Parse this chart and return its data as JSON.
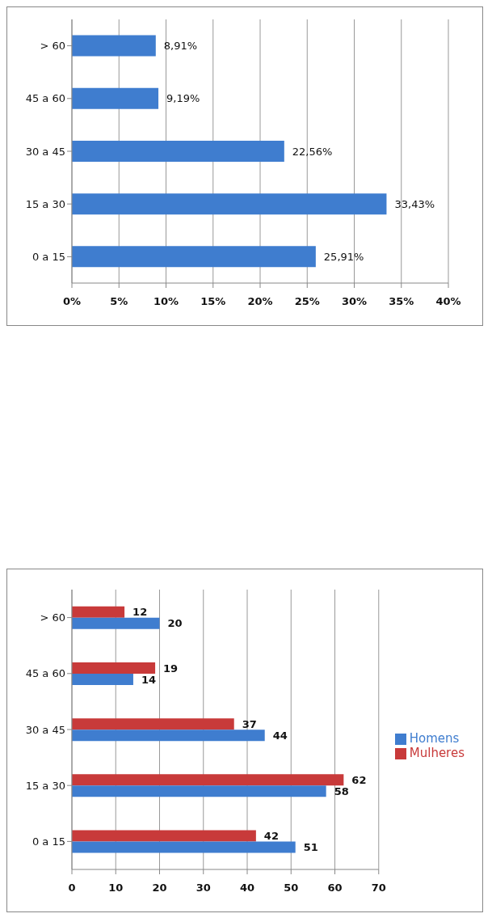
{
  "chart_data": [
    {
      "type": "bar",
      "orientation": "horizontal",
      "categories": [
        "> 60",
        "45 a 60",
        "30 a 45",
        "15 a 30",
        "0 a 15"
      ],
      "values": [
        8.91,
        9.19,
        22.56,
        33.43,
        25.91
      ],
      "color": "#3f7dcf",
      "value_labels": [
        "8,91%",
        "9,19%",
        "22,56%",
        "33,43%",
        "25,91%"
      ],
      "xlim": [
        0,
        40
      ],
      "xticks": [
        {
          "value": 0,
          "label": "0%"
        },
        {
          "value": 5,
          "label": "5%"
        },
        {
          "value": 10,
          "label": "10%"
        },
        {
          "value": 15,
          "label": "15%"
        },
        {
          "value": 20,
          "label": "20%"
        },
        {
          "value": 25,
          "label": "25%"
        },
        {
          "value": 30,
          "label": "30%"
        },
        {
          "value": 35,
          "label": "35%"
        },
        {
          "value": 40,
          "label": "40%"
        }
      ],
      "grid": "x",
      "legend": false
    },
    {
      "type": "bar",
      "orientation": "horizontal",
      "categories": [
        "> 60",
        "45 a 60",
        "30 a 45",
        "15 a 30",
        "0 a 15"
      ],
      "series": [
        {
          "name": "Mulheres",
          "color": "#c83a3a",
          "values": [
            12,
            19,
            37,
            62,
            42
          ]
        },
        {
          "name": "Homens",
          "color": "#3f7dcf",
          "values": [
            20,
            14,
            44,
            58,
            51
          ]
        }
      ],
      "xlim": [
        0,
        70
      ],
      "xticks": [
        0,
        10,
        20,
        30,
        40,
        50,
        60,
        70
      ],
      "grid": "x",
      "legend": "right",
      "data_labels": true
    }
  ]
}
